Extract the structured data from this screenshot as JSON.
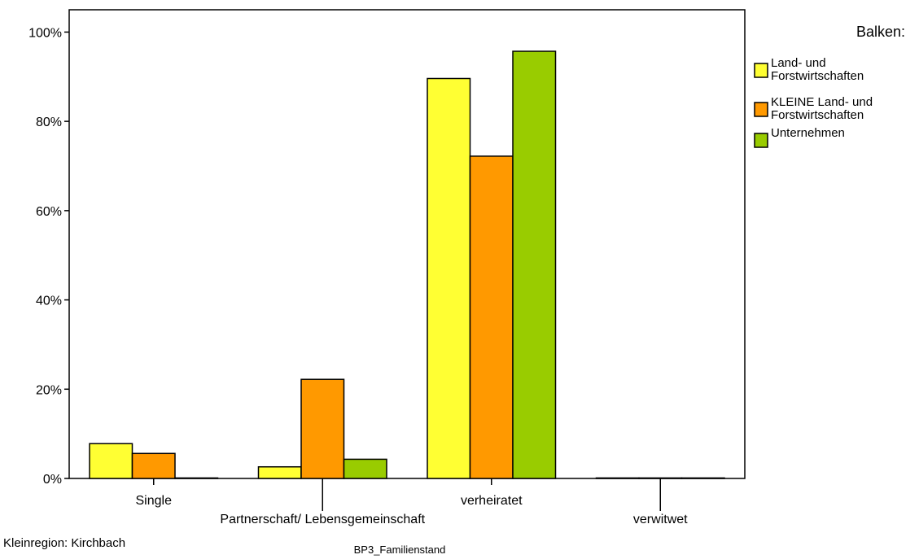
{
  "chart_data": {
    "type": "bar",
    "categories": [
      "Single",
      "Partnerschaft/ Lebensgemeinschaft",
      "verheiratet",
      "verwitwet"
    ],
    "series": [
      {
        "name": "Land- und Forstwirtschaften",
        "values": [
          7.8,
          2.6,
          89.6,
          0
        ],
        "color": "#ffff33"
      },
      {
        "name": "KLEINE Land- und Forstwirtschaften",
        "values": [
          5.6,
          22.2,
          72.2,
          0
        ],
        "color": "#ff9900"
      },
      {
        "name": "Unternehmen",
        "values": [
          0,
          4.3,
          95.7,
          0
        ],
        "color": "#99cc00"
      }
    ],
    "xlabel": "BP3_Familienstand",
    "ylabel": "",
    "ylim": [
      0,
      105
    ],
    "yticks": [
      "0%",
      "20%",
      "40%",
      "60%",
      "80%",
      "100%"
    ],
    "ytick_values": [
      0,
      20,
      40,
      60,
      80,
      100
    ],
    "legend_title": "Balken:",
    "legend_labels": [
      [
        "Land- und",
        "Forstwirtschaften"
      ],
      [
        "KLEINE Land- und",
        "Forstwirtschaften"
      ],
      [
        "Unternehmen"
      ]
    ],
    "legend_position": "top-right",
    "footnote": "Kleinregion: Kirchbach",
    "grid": false
  }
}
